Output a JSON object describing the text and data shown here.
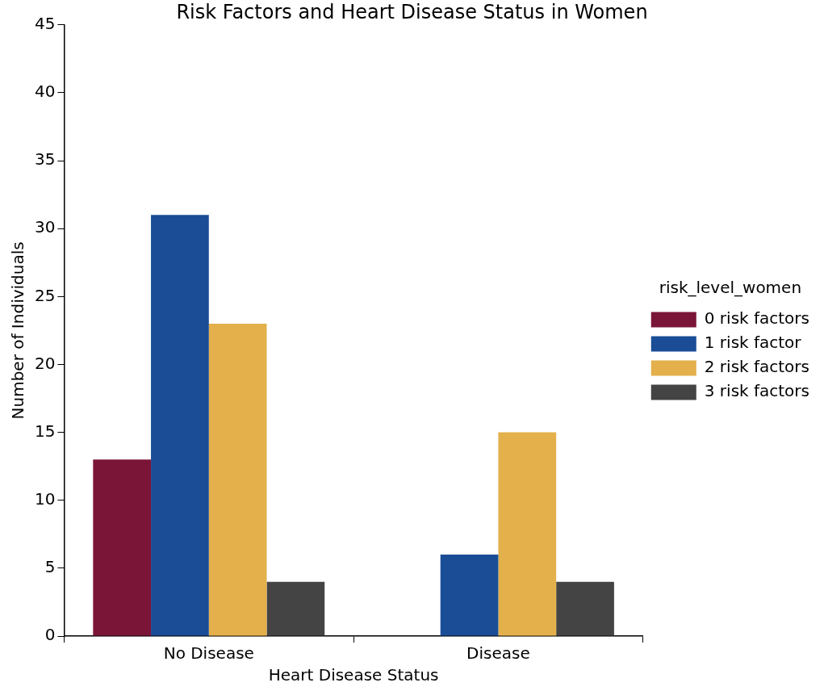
{
  "chart_data": {
    "type": "bar",
    "title": "Risk Factors and Heart Disease Status in Women",
    "xlabel": "Heart Disease Status",
    "ylabel": "Number of Individuals",
    "legend_title": "risk_level_women",
    "legend": "right",
    "categories": [
      "No Disease",
      "Disease"
    ],
    "series": [
      {
        "name": "0 risk factors",
        "color": "#7a1538",
        "values": [
          13,
          0
        ]
      },
      {
        "name": "1 risk factor",
        "color": "#1a4d96",
        "values": [
          31,
          6
        ]
      },
      {
        "name": "2 risk factors",
        "color": "#e3b04b",
        "values": [
          23,
          15
        ]
      },
      {
        "name": "3 risk factors",
        "color": "#444444",
        "values": [
          4,
          4
        ]
      }
    ],
    "ylim": [
      0,
      45
    ],
    "yticks": [
      0,
      5,
      10,
      15,
      20,
      25,
      30,
      35,
      40,
      45
    ]
  }
}
